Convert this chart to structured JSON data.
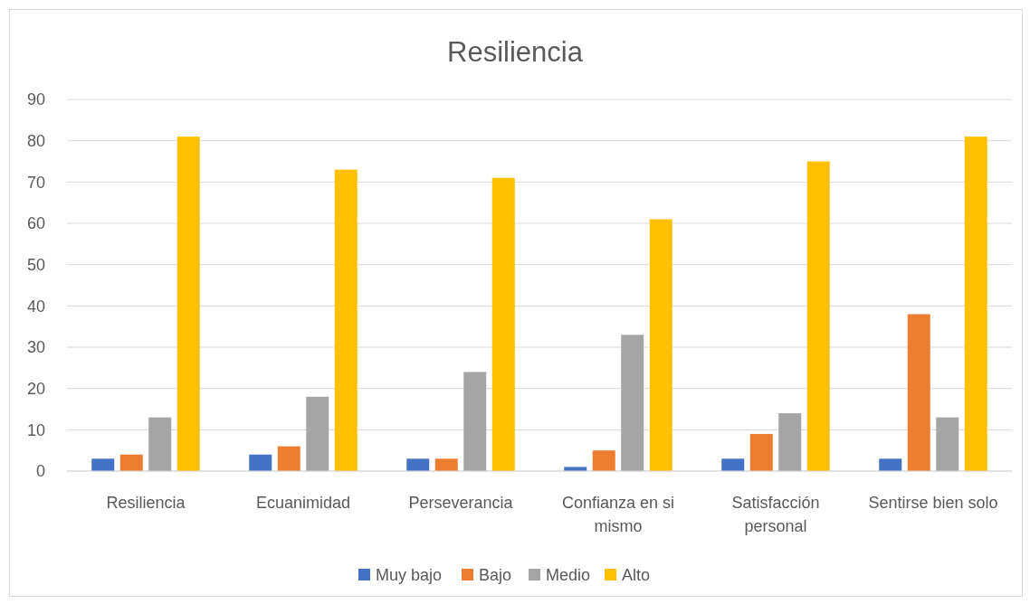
{
  "chart_data": {
    "type": "bar",
    "title": "Resiliencia",
    "categories": [
      "Resiliencia",
      "Ecuanimidad",
      "Perseverancia",
      "Confianza en si mismo",
      "Satisfacción personal",
      "Sentirse bien solo"
    ],
    "series": [
      {
        "name": "Muy bajo",
        "color": "#4472c4",
        "values": [
          3,
          4,
          3,
          1,
          3,
          3
        ]
      },
      {
        "name": "Bajo",
        "color": "#ed7d31",
        "values": [
          4,
          6,
          3,
          5,
          9,
          38
        ]
      },
      {
        "name": "Medio",
        "color": "#a5a5a5",
        "values": [
          13,
          18,
          24,
          33,
          14,
          13
        ]
      },
      {
        "name": "Alto",
        "color": "#ffc000",
        "values": [
          81,
          73,
          71,
          61,
          75,
          81
        ]
      }
    ],
    "ylim": [
      0,
      90
    ],
    "yticks": [
      0,
      10,
      20,
      30,
      40,
      50,
      60,
      70,
      80,
      90
    ],
    "grid": "y",
    "legend": "bottom"
  }
}
